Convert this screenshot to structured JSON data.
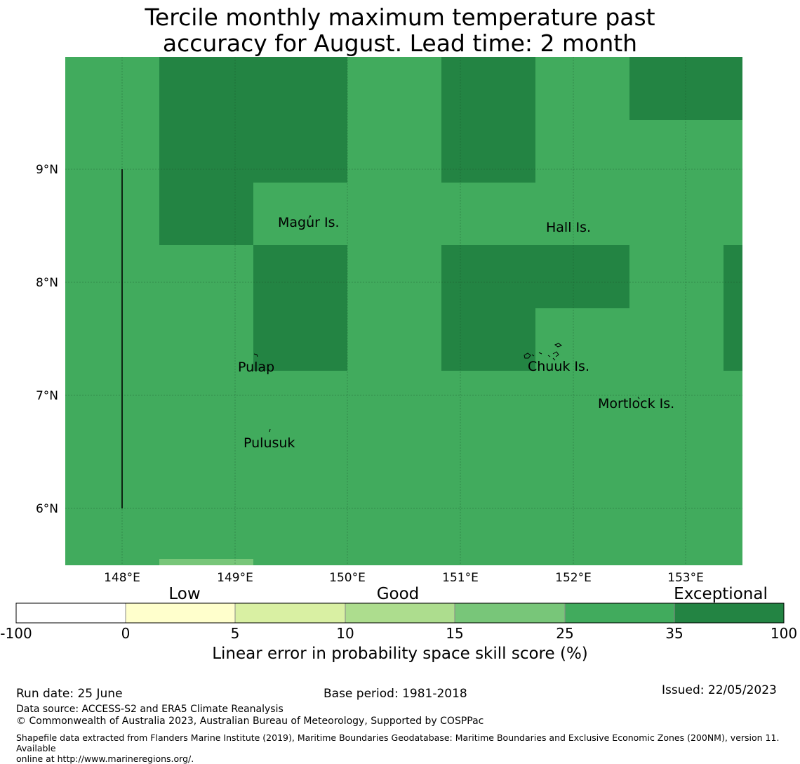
{
  "title_line1": "Tercile monthly maximum temperature past",
  "title_line2": "accuracy for August. Lead time: 2 month",
  "map": {
    "lat_labels": [
      "9°N",
      "8°N",
      "7°N",
      "6°N"
    ],
    "lon_labels": [
      "148°E",
      "149°E",
      "150°E",
      "151°E",
      "152°E",
      "153°E"
    ],
    "places": [
      "Magur Is.",
      "Hall Is.",
      "Pulap",
      "Chuuk Is.",
      "Mortlock Is.",
      "Pulusuk"
    ],
    "colors": {
      "cat25_35": "#41ab5d",
      "cat35_100": "#238443",
      "cat15_25": "#78c679"
    }
  },
  "colorbar": {
    "categories": [
      "Low",
      "Good",
      "Exceptional"
    ],
    "ticks": [
      "-100",
      "0",
      "5",
      "10",
      "15",
      "25",
      "35",
      "100"
    ],
    "colors": [
      "#ffffff",
      "#ffffcc",
      "#d9f0a3",
      "#addd8e",
      "#78c679",
      "#41ab5d",
      "#238443"
    ],
    "label": "Linear error in probability space skill score (%)"
  },
  "footer": {
    "run_date": "Run date: 25 June",
    "base_period": "Base period: 1981-2018",
    "issued": "Issued: 22/05/2023",
    "data_source": "Data source: ACCESS-S2 and ERA5 Climate Reanalysis",
    "copyright": "© Commonwealth of Australia 2023, Australian Bureau of Meteorology, Supported by COSPPac",
    "shapefile_line1": "Shapefile data extracted from Flanders Marine Institute (2019), Maritime Boundaries Geodatabase: Maritime Boundaries and Exclusive Economic Zones (200NM), version 11. Available",
    "shapefile_line2": "online at http://www.marineregions.org/."
  }
}
